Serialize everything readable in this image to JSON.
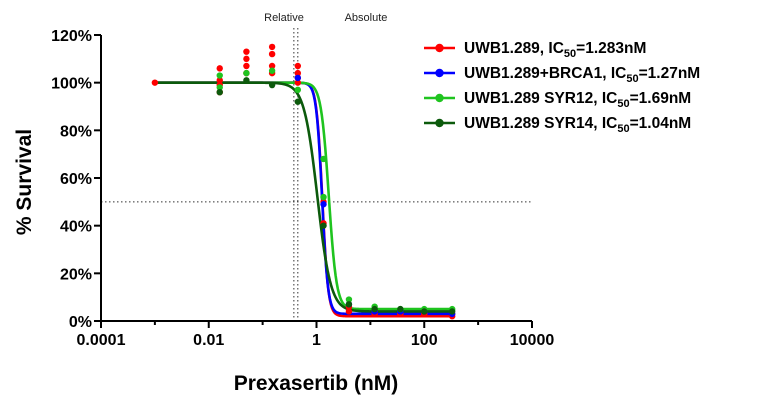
{
  "chart_data": {
    "type": "scatter",
    "xscale": "log",
    "xlabel": "Prexasertib (nM)",
    "ylabel": "% Survival",
    "xlim": [
      0.0001,
      10000
    ],
    "ylim": [
      0,
      120
    ],
    "xticks": [
      {
        "value": 0.0001,
        "label": "0.0001"
      },
      {
        "value": 0.01,
        "label": "0.01"
      },
      {
        "value": 1,
        "label": "1"
      },
      {
        "value": 100,
        "label": "100"
      },
      {
        "value": 10000,
        "label": "10000"
      }
    ],
    "yticks": [
      {
        "value": 0,
        "label": "0%"
      },
      {
        "value": 20,
        "label": "20%"
      },
      {
        "value": 40,
        "label": "40%"
      },
      {
        "value": 60,
        "label": "60%"
      },
      {
        "value": 80,
        "label": "80%"
      },
      {
        "value": 100,
        "label": "100%"
      },
      {
        "value": 120,
        "label": "120%"
      }
    ],
    "grid": false,
    "legend_position": "top-right",
    "reference_lines": {
      "horizontal_y": 50,
      "vertical_x": [
        0.38,
        0.45
      ],
      "labels": [
        "Relative",
        "Absolute"
      ]
    },
    "series": [
      {
        "legend_parts": [
          "UWB1.289,  IC",
          "50",
          "=1.283nM"
        ],
        "color": "#ff0000",
        "ic50": 1.283,
        "top": 100,
        "bottom": 2,
        "hill": 8,
        "x": [
          0.001,
          0.016,
          0.016,
          0.016,
          0.016,
          0.05,
          0.05,
          0.05,
          0.05,
          0.15,
          0.15,
          0.15,
          0.15,
          0.45,
          0.45,
          0.45,
          0.45,
          1.35,
          1.35,
          4,
          4,
          12,
          12,
          36,
          36,
          100,
          100,
          330,
          330
        ],
        "y": [
          100,
          106,
          101,
          99,
          96,
          113,
          110,
          107,
          104,
          115,
          112,
          107,
          104,
          107,
          104,
          102,
          100,
          50,
          41,
          6,
          4,
          4,
          3,
          3,
          3,
          3,
          3,
          3,
          2
        ]
      },
      {
        "legend_parts": [
          "UWB1.289+BRCA1, IC",
          "50",
          "=1.27nM"
        ],
        "color": "#0000ff",
        "ic50": 1.27,
        "top": 100,
        "bottom": 3,
        "hill": 8,
        "x": [
          0.45,
          1.35,
          4,
          12,
          36,
          100,
          330
        ],
        "y": [
          102,
          49,
          7,
          4,
          4,
          4,
          3
        ]
      },
      {
        "legend_parts": [
          "UWB1.289 SYR12, IC",
          "50",
          "=1.69nM"
        ],
        "color": "#1fc41f",
        "ic50": 1.69,
        "top": 100,
        "bottom": 5,
        "hill": 6,
        "x": [
          0.016,
          0.016,
          0.05,
          0.15,
          0.45,
          1.35,
          1.35,
          4,
          12,
          36,
          100,
          330
        ],
        "y": [
          103,
          98,
          104,
          105,
          97,
          68,
          52,
          9,
          6,
          5,
          5,
          5
        ]
      },
      {
        "legend_parts": [
          "UWB1.289 SYR14,  IC",
          "50",
          "=1.04nM"
        ],
        "color": "#0c5a0c",
        "ic50": 1.04,
        "top": 100,
        "bottom": 4,
        "hill": 3.5,
        "x": [
          0.016,
          0.05,
          0.15,
          0.45,
          1.35,
          4,
          12,
          36,
          100,
          330
        ],
        "y": [
          96,
          101,
          99,
          92,
          40,
          7,
          5,
          5,
          4,
          4
        ]
      }
    ]
  }
}
